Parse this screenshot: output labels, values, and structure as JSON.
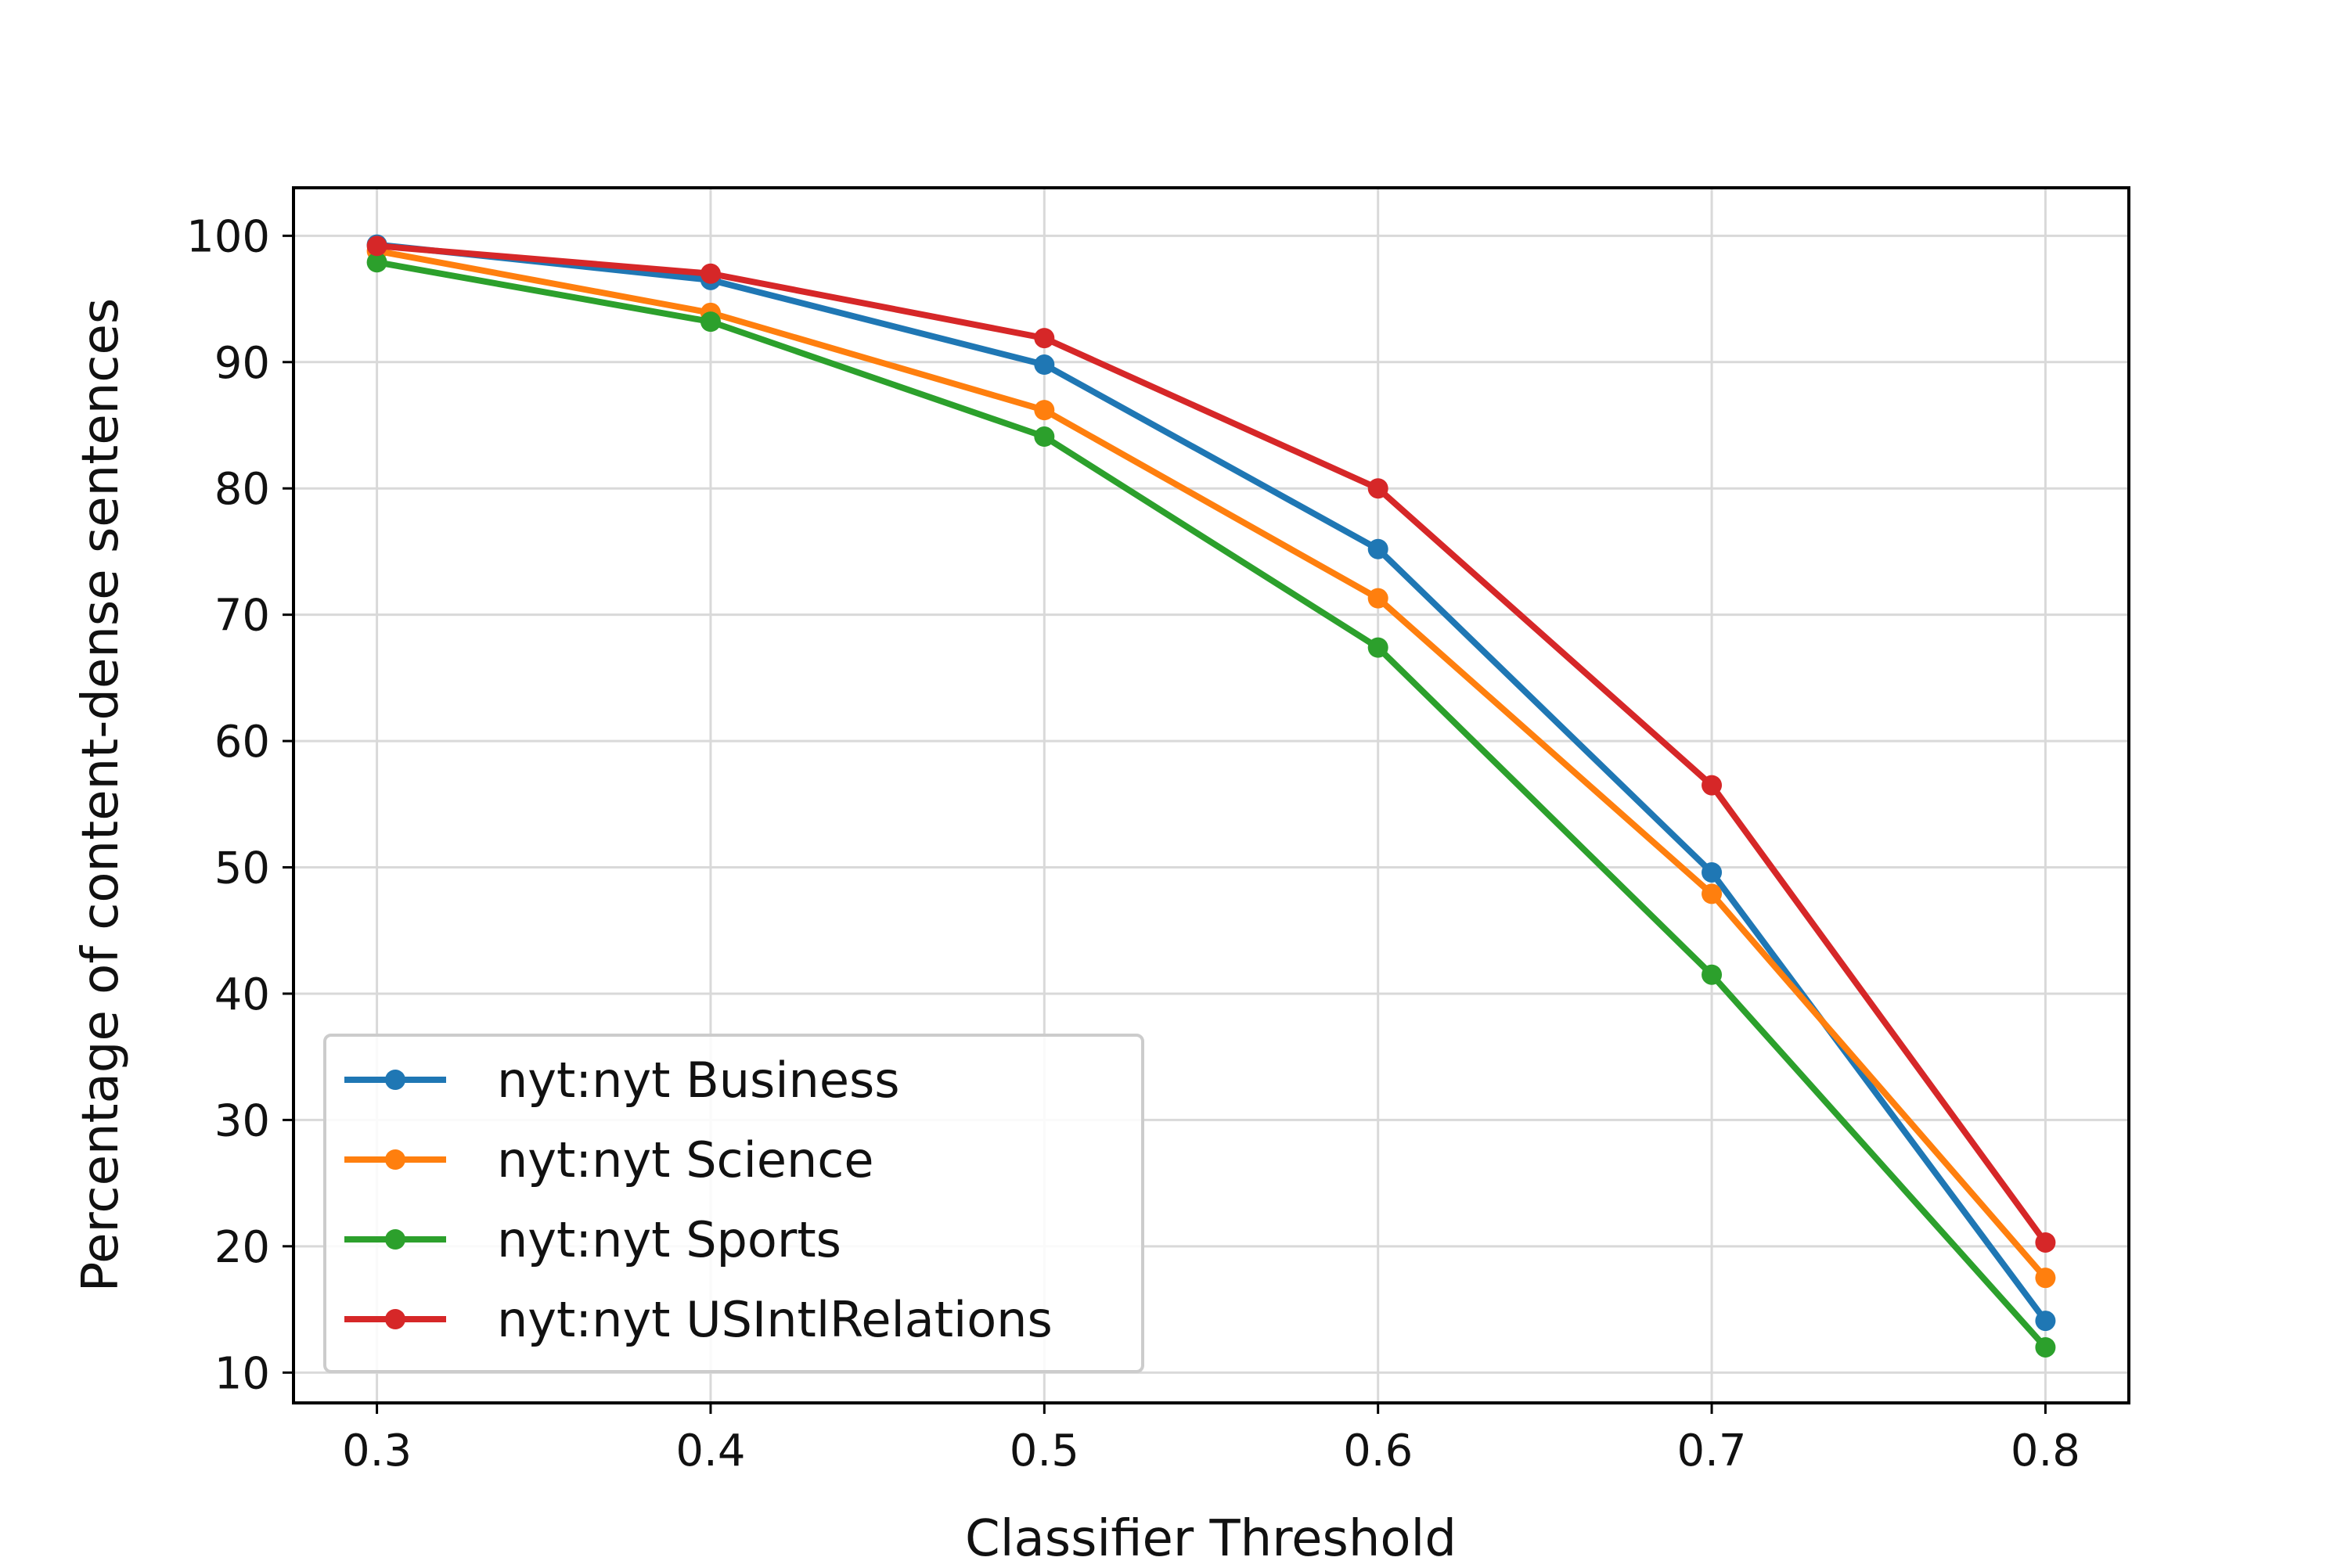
{
  "chart_data": {
    "type": "line",
    "title": "",
    "xlabel": "Classifier Threshold",
    "ylabel": "Percentage of content-dense sentences",
    "x": [
      0.3,
      0.4,
      0.5,
      0.6,
      0.7,
      0.8
    ],
    "x_tick_labels": [
      "0.3",
      "0.4",
      "0.5",
      "0.6",
      "0.7",
      "0.8"
    ],
    "y_ticks": [
      10,
      20,
      30,
      40,
      50,
      60,
      70,
      80,
      90,
      100
    ],
    "xlim": [
      0.275,
      0.825
    ],
    "ylim": [
      7.6,
      103.8
    ],
    "grid": true,
    "legend_position": "lower-left",
    "series": [
      {
        "name": "nyt:nyt Business",
        "color": "#1f77b4",
        "values": [
          99.3,
          96.5,
          89.8,
          75.2,
          49.6,
          14.1
        ]
      },
      {
        "name": "nyt:nyt Science",
        "color": "#ff7f0e",
        "values": [
          98.8,
          93.9,
          86.2,
          71.3,
          47.9,
          17.5
        ]
      },
      {
        "name": "nyt:nyt Sports",
        "color": "#2ca02c",
        "values": [
          97.9,
          93.2,
          84.1,
          67.4,
          41.5,
          12.0
        ]
      },
      {
        "name": "nyt:nyt USIntlRelations",
        "color": "#d62728",
        "values": [
          99.2,
          97.0,
          91.9,
          80.0,
          56.5,
          20.3
        ]
      }
    ]
  }
}
